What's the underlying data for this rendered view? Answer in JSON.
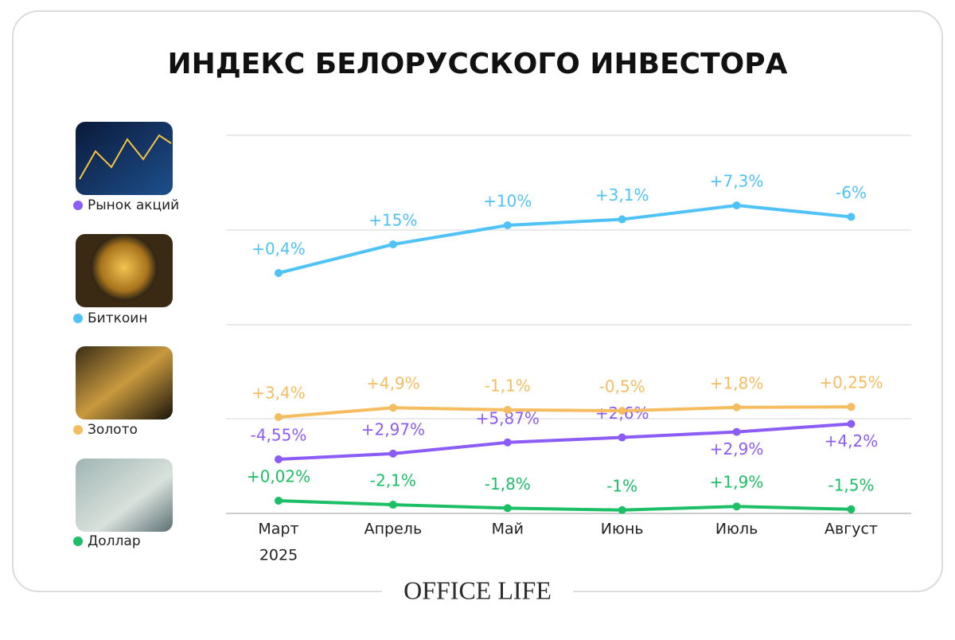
{
  "chart_data": {
    "type": "line",
    "title": "ИНДЕКС БЕЛОРУССКОГО ИНВЕСТОРА",
    "categories": [
      "Март",
      "Апрель",
      "Май",
      "Июнь",
      "Июль",
      "Август"
    ],
    "year": "2025",
    "series": [
      {
        "name": "Рынок акций",
        "color": "#8b5cf6",
        "values": [
          -4.55,
          2.97,
          5.87,
          2.6,
          2.9,
          4.2
        ],
        "value_labels": [
          "-4,55%",
          "+2,97%",
          "+5,87%",
          "+2,6%",
          "+2,9%",
          "+4,2%"
        ]
      },
      {
        "name": "Биткоин",
        "color": "#4fc3f7",
        "values": [
          0.4,
          15,
          10,
          3.1,
          7.3,
          -6
        ],
        "value_labels": [
          "+0,4%",
          "+15%",
          "+10%",
          "+3,1%",
          "+7,3%",
          "-6%"
        ]
      },
      {
        "name": "Золото",
        "color": "#f6bd60",
        "values": [
          3.4,
          4.9,
          -1.1,
          -0.5,
          1.8,
          0.25
        ],
        "value_labels": [
          "+3,4%",
          "+4,9%",
          "-1,1%",
          "-0,5%",
          "+1,8%",
          "+0,25%"
        ]
      },
      {
        "name": "Доллар",
        "color": "#1dbf66",
        "values": [
          0.02,
          -2.1,
          -1.8,
          -1,
          1.9,
          -1.5
        ],
        "value_labels": [
          "+0,02%",
          "-2,1%",
          "-1,8%",
          "-1%",
          "+1,9%",
          "-1,5%"
        ]
      }
    ],
    "brand": "OFFICE LIFE"
  }
}
